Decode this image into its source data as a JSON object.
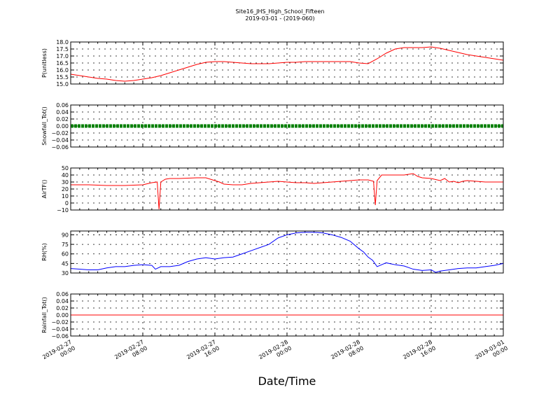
{
  "chart_data": {
    "type": "line",
    "title": "Site16_JHS_High_School_Fifteen",
    "subtitle": "2019-03-01 - (2019-060)",
    "xlabel": "Date/Time",
    "x_ticks": [
      [
        "2019-02-27",
        "00:00"
      ],
      [
        "2019-02-27",
        "08:00"
      ],
      [
        "2019-02-27",
        "16:00"
      ],
      [
        "2019-02-28",
        "00:00"
      ],
      [
        "2019-02-28",
        "08:00"
      ],
      [
        "2019-02-28",
        "16:00"
      ],
      [
        "2019-03-01",
        "00:00"
      ]
    ],
    "xlim_hours": [
      0,
      48
    ],
    "grid": true,
    "panels": [
      {
        "ylabel": "P(unitless)",
        "ylim": [
          15.0,
          18.0
        ],
        "yticks": [
          "15.0",
          "15.5",
          "16.0",
          "16.5",
          "17.0",
          "17.5",
          "18.0"
        ],
        "color": "#ff0000",
        "style": "line",
        "x": [
          0,
          1,
          2,
          3,
          4,
          5,
          6,
          7,
          8,
          9,
          10,
          11,
          12,
          13,
          14,
          15,
          16,
          17,
          18,
          19,
          20,
          21,
          22,
          23,
          24,
          25,
          26,
          27,
          28,
          29,
          30,
          31,
          32,
          33,
          34,
          35,
          36,
          37,
          38,
          39,
          40,
          41,
          42,
          43,
          44,
          45,
          46,
          47,
          48
        ],
        "values": [
          15.7,
          15.6,
          15.5,
          15.4,
          15.35,
          15.25,
          15.2,
          15.25,
          15.35,
          15.45,
          15.6,
          15.8,
          16.0,
          16.2,
          16.4,
          16.55,
          16.6,
          16.6,
          16.55,
          16.5,
          16.45,
          16.45,
          16.45,
          16.5,
          16.55,
          16.55,
          16.6,
          16.6,
          16.6,
          16.6,
          16.6,
          16.6,
          16.5,
          16.45,
          16.8,
          17.2,
          17.5,
          17.6,
          17.6,
          17.6,
          17.65,
          17.55,
          17.4,
          17.25,
          17.1,
          17.0,
          16.9,
          16.8,
          16.7
        ]
      },
      {
        "ylabel": "Snowfall_Tot()",
        "ylim": [
          -0.06,
          0.06
        ],
        "yticks": [
          "−0.06",
          "−0.04",
          "−0.02",
          "0.00",
          "0.02",
          "0.04",
          "0.06"
        ],
        "color": "#008000",
        "style": "dots",
        "x": [
          0,
          48
        ],
        "values": [
          0,
          0
        ]
      },
      {
        "ylabel": "AirTF()",
        "ylim": [
          -10,
          50
        ],
        "yticks": [
          "−10",
          "0",
          "10",
          "20",
          "30",
          "40",
          "50"
        ],
        "color": "#ff0000",
        "style": "line",
        "x": [
          0,
          2,
          4,
          6,
          7,
          8,
          9,
          9.6,
          9.8,
          10,
          10.5,
          11,
          12,
          13,
          14,
          15,
          16,
          16.5,
          17,
          18,
          19,
          20,
          21,
          22,
          23,
          24,
          25,
          26,
          27,
          28,
          29,
          30,
          31,
          32,
          33,
          33.6,
          33.8,
          34,
          34.5,
          35,
          36,
          37,
          38,
          38.5,
          39,
          40,
          41,
          41.5,
          42,
          42.5,
          43,
          43.5,
          44,
          45,
          46,
          47,
          48
        ],
        "values": [
          26,
          26,
          25,
          25,
          25.5,
          26,
          29,
          30,
          -9,
          30,
          34,
          35,
          35,
          35.5,
          36,
          36,
          32,
          30,
          27,
          26,
          26,
          28,
          29,
          30,
          31,
          30,
          29,
          29,
          28,
          29,
          30,
          31,
          32,
          33,
          33,
          31,
          -3,
          32,
          40,
          40,
          40,
          40,
          42,
          38,
          36,
          35,
          32,
          35,
          30,
          31,
          29,
          31,
          32,
          31,
          30,
          30,
          30
        ]
      },
      {
        "ylabel": "RH(%)",
        "ylim": [
          30,
          96
        ],
        "yticks": [
          "30",
          "45",
          "60",
          "75",
          "90"
        ],
        "color": "#0000ff",
        "style": "line",
        "x": [
          0,
          1,
          2,
          3,
          4,
          5,
          6,
          7,
          8,
          9,
          9.4,
          10,
          11,
          12,
          13,
          14,
          15,
          16,
          17,
          18,
          19,
          20,
          21,
          22,
          23,
          24,
          25,
          26,
          27,
          28,
          29,
          30,
          31,
          32,
          32.5,
          33,
          33.5,
          34,
          35,
          36,
          37,
          38,
          39,
          40,
          40.5,
          41,
          42,
          43,
          44,
          45,
          46,
          47,
          48
        ],
        "values": [
          37,
          36,
          35,
          35,
          38,
          40,
          40,
          42,
          43,
          42,
          36,
          40,
          40,
          42,
          48,
          52,
          54,
          52,
          54,
          55,
          60,
          65,
          70,
          75,
          85,
          90,
          93,
          94,
          94,
          93,
          90,
          86,
          80,
          68,
          63,
          55,
          50,
          40,
          46,
          43,
          41,
          36,
          34,
          35,
          31,
          33,
          35,
          37,
          38,
          38,
          40,
          42,
          45
        ]
      },
      {
        "ylabel": "Rainfall_Tot()",
        "ylim": [
          -0.06,
          0.06
        ],
        "yticks": [
          "−0.06",
          "−0.04",
          "−0.02",
          "0.00",
          "0.02",
          "0.04",
          "0.06"
        ],
        "color": "#ff0000",
        "style": "line",
        "x": [
          0,
          48
        ],
        "values": [
          0,
          0
        ]
      }
    ]
  }
}
